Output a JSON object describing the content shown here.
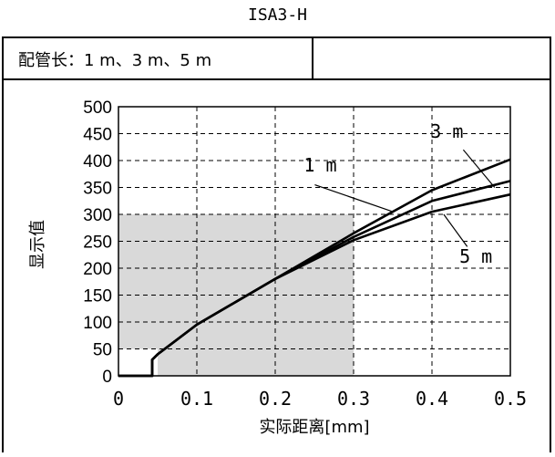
{
  "title": "ISA3-H",
  "condition_label": "配管长：1 m、3 m、5 m",
  "chart_data": {
    "type": "line",
    "title": "ISA3-H",
    "xlabel": "实际距离[mm]",
    "ylabel": "显示值",
    "xlim": [
      0,
      0.5
    ],
    "ylim": [
      0,
      500
    ],
    "x_ticks": [
      "0",
      "0.1",
      "0.2",
      "0.3",
      "0.4",
      "0.5"
    ],
    "y_ticks": [
      "0",
      "50",
      "100",
      "150",
      "200",
      "250",
      "300",
      "350",
      "400",
      "450",
      "500"
    ],
    "grid": true,
    "shaded_region": {
      "x": [
        0.05,
        0.3
      ],
      "y": [
        0,
        300
      ]
    },
    "series": [
      {
        "name": "1 m",
        "x": [
          0,
          0.043,
          0.043,
          0.05,
          0.1,
          0.2,
          0.3,
          0.4,
          0.5
        ],
        "y": [
          0,
          0,
          30,
          40,
          95,
          180,
          265,
          345,
          402
        ]
      },
      {
        "name": "3 m",
        "x": [
          0,
          0.043,
          0.043,
          0.05,
          0.1,
          0.2,
          0.3,
          0.4,
          0.5
        ],
        "y": [
          0,
          0,
          30,
          40,
          95,
          180,
          258,
          325,
          362
        ]
      },
      {
        "name": "5 m",
        "x": [
          0,
          0.043,
          0.043,
          0.05,
          0.1,
          0.2,
          0.3,
          0.4,
          0.5
        ],
        "y": [
          0,
          0,
          30,
          40,
          95,
          180,
          252,
          305,
          337
        ]
      }
    ]
  }
}
